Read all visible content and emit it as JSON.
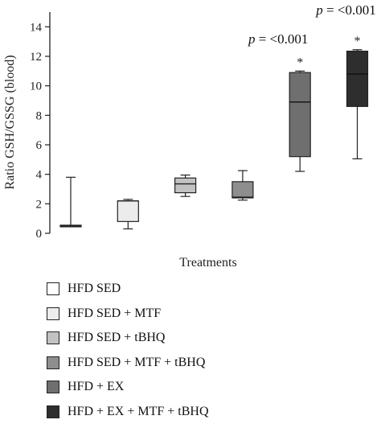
{
  "chart_data": {
    "type": "box",
    "ylabel": "Ratio GSH/GSSG (blood)",
    "xlabel": "Treatments",
    "ylim": [
      0,
      15
    ],
    "yticks": [
      0,
      2,
      4,
      6,
      8,
      10,
      12,
      14
    ],
    "grid": false,
    "legend_position": "bottom",
    "series": [
      {
        "name": "HFD SED",
        "color": "#ffffff",
        "min": 0.45,
        "q1": 0.45,
        "median": 0.5,
        "q3": 0.55,
        "max": 3.8
      },
      {
        "name": "HFD SED + MTF",
        "color": "#ececec",
        "min": 0.3,
        "q1": 0.8,
        "median": 2.2,
        "q3": 2.2,
        "max": 2.3
      },
      {
        "name": "HFD SED + tBHQ",
        "color": "#c2c2c2",
        "min": 2.5,
        "q1": 2.75,
        "median": 3.35,
        "q3": 3.75,
        "max": 3.95
      },
      {
        "name": "HFD SED + MTF + tBHQ",
        "color": "#8e8e8e",
        "min": 2.25,
        "q1": 2.4,
        "median": 2.45,
        "q3": 3.5,
        "max": 4.25
      },
      {
        "name": "HFD + EX",
        "color": "#6f6f6f",
        "min": 4.2,
        "q1": 5.2,
        "median": 8.9,
        "q3": 10.9,
        "max": 11.0
      },
      {
        "name": "HFD + EX + MTF + tBHQ",
        "color": "#2e2e2e",
        "min": 5.05,
        "q1": 8.6,
        "median": 10.8,
        "q3": 12.35,
        "max": 12.45
      }
    ],
    "annotations": [
      {
        "text": "p = <0.001",
        "group_index": 4,
        "star": "*"
      },
      {
        "text": "p = <0.001",
        "group_index": 5,
        "star": "*"
      }
    ]
  }
}
